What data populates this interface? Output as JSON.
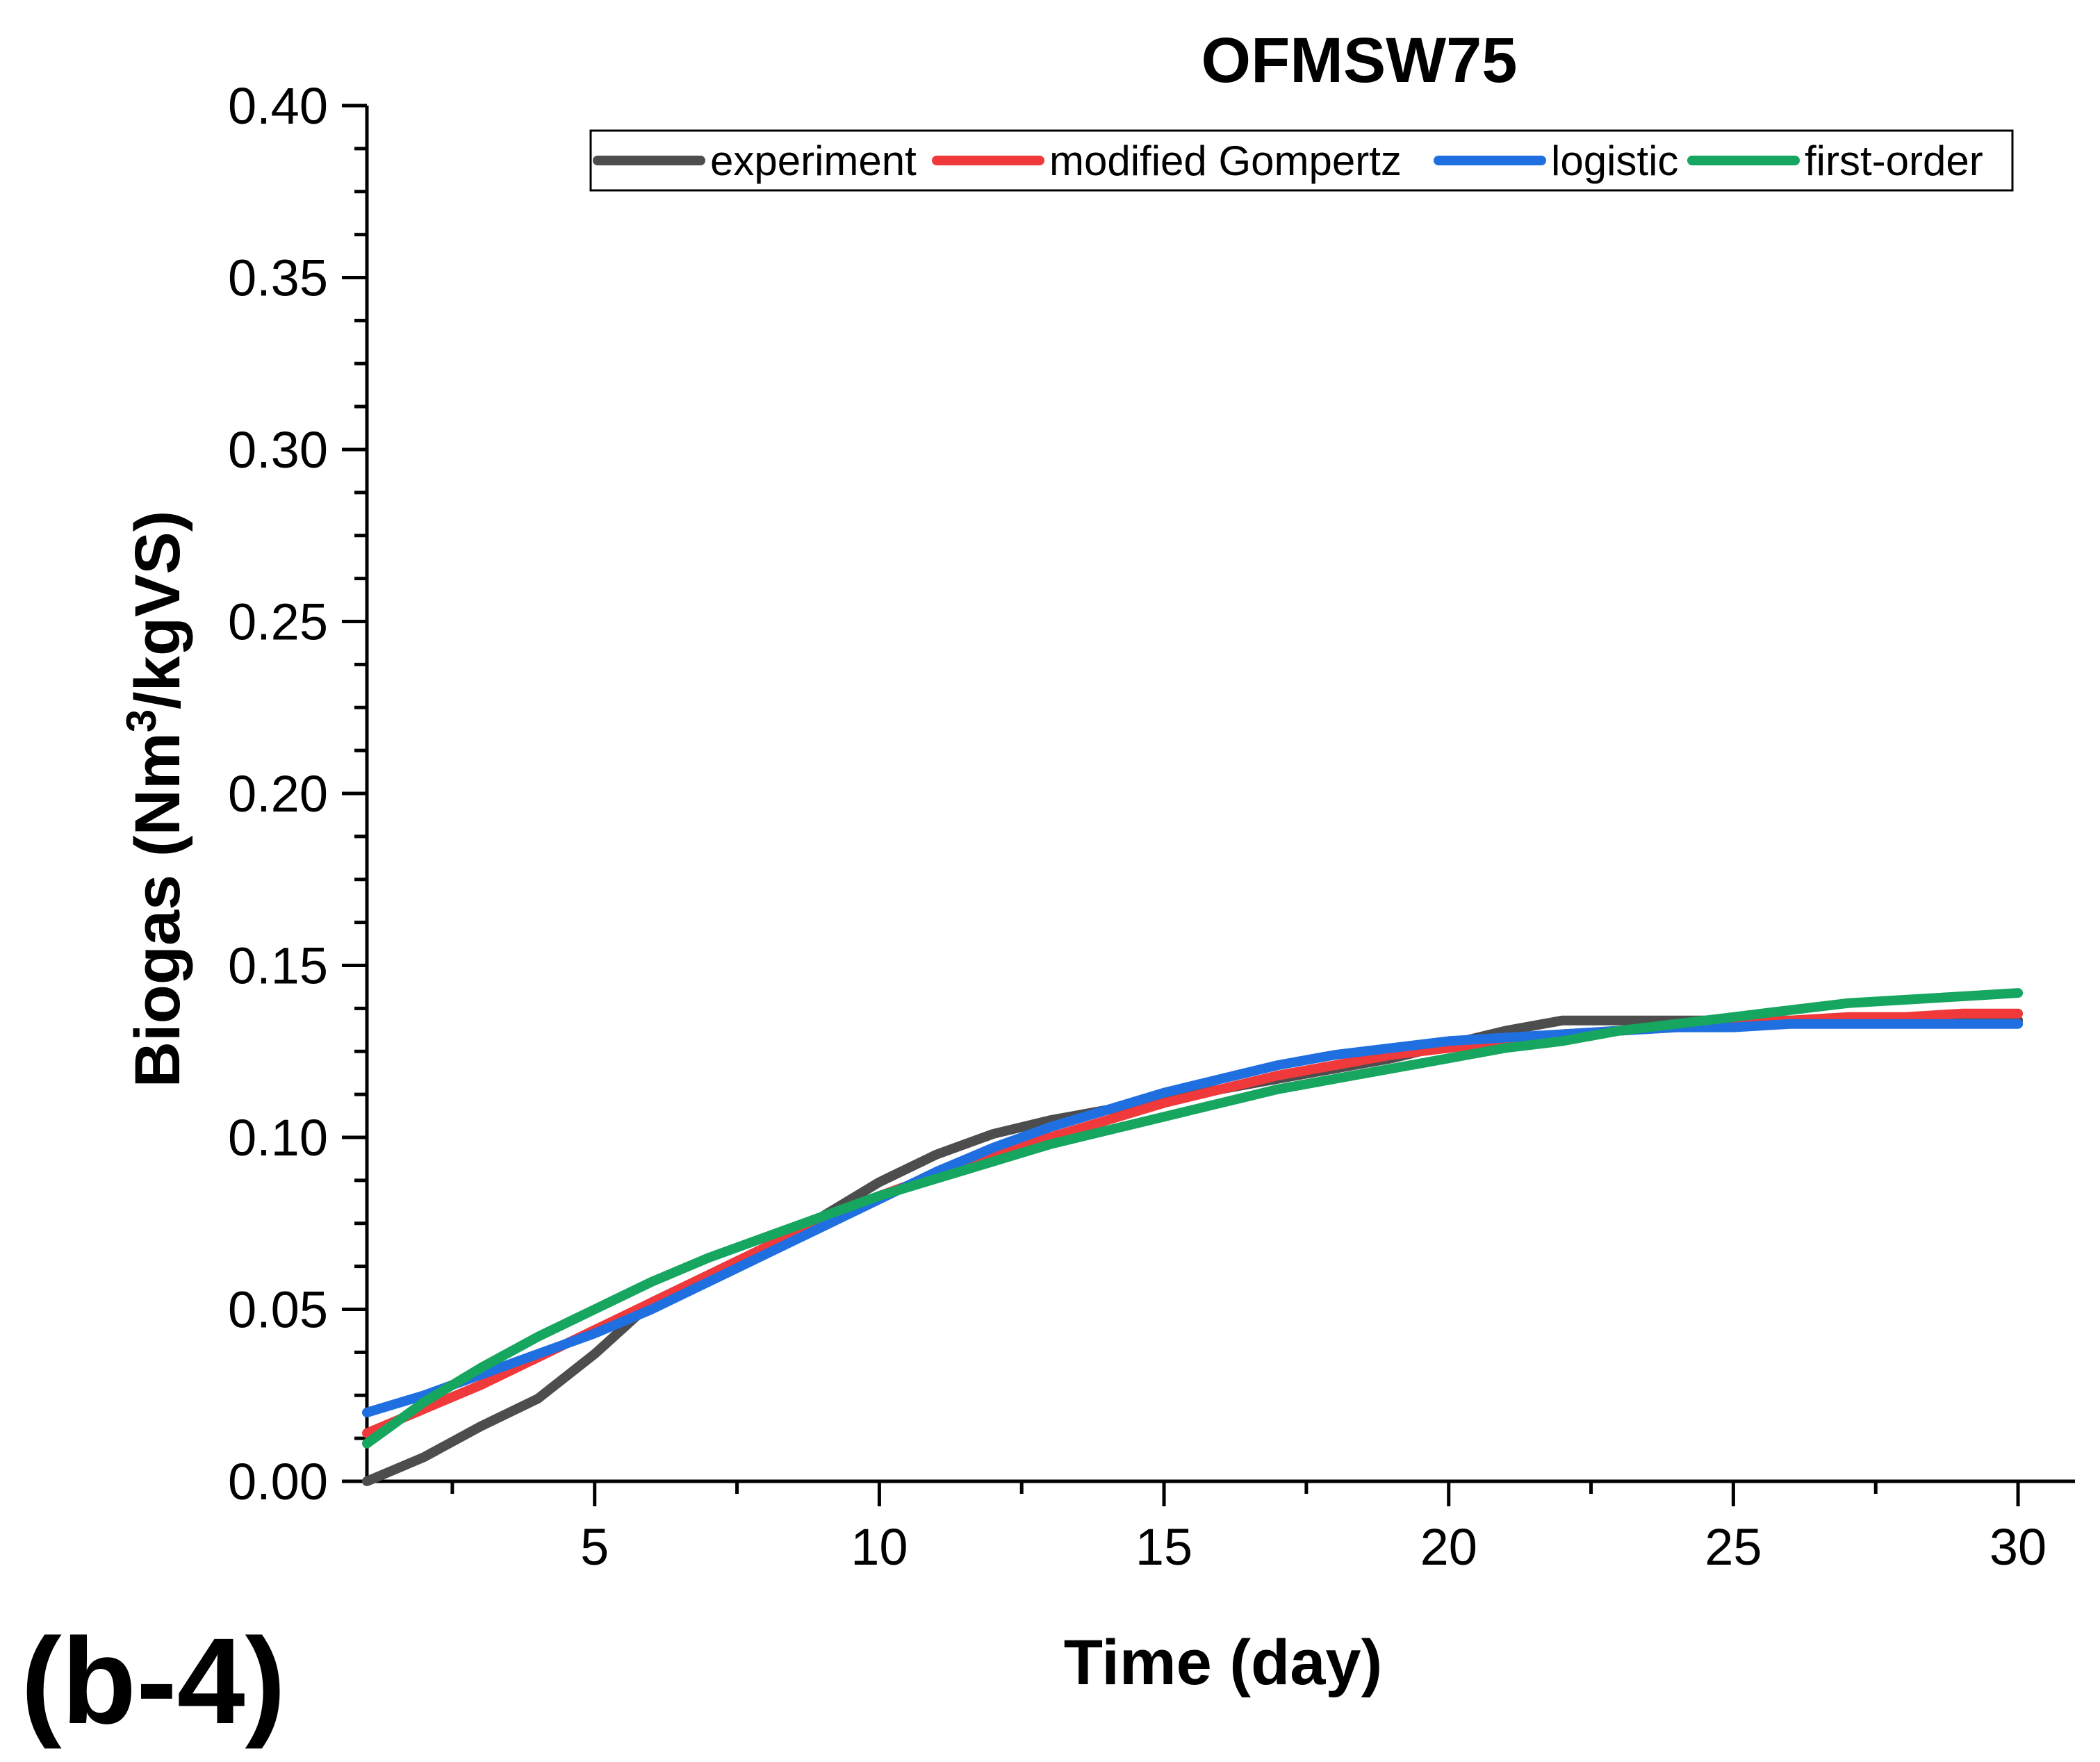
{
  "panel_label": "(b-4)",
  "chart_data": {
    "type": "line",
    "title": "OFMSW75",
    "xlabel": "Time (day)",
    "ylabel_main": "Biogas (Nm",
    "ylabel_sup": "3",
    "ylabel_tail": "/kgVS)",
    "xlim": [
      1,
      31
    ],
    "ylim": [
      0,
      0.4
    ],
    "xticks_major": [
      5,
      10,
      15,
      20,
      25,
      30
    ],
    "xtick_labels": [
      "5",
      "10",
      "15",
      "20",
      "25",
      "30"
    ],
    "yticks_major": [
      0,
      0.05,
      0.1,
      0.15,
      0.2,
      0.25,
      0.3,
      0.35,
      0.4
    ],
    "ytick_labels": [
      "0.00",
      "0.05",
      "0.10",
      "0.15",
      "0.20",
      "0.25",
      "0.30",
      "0.35",
      "0.40"
    ],
    "legend_position": "top-right",
    "series": [
      {
        "name": "experiment",
        "color": "#4d4d4d",
        "x": [
          1,
          2,
          3,
          4,
          5,
          6,
          7,
          8,
          9,
          10,
          11,
          12,
          13,
          14,
          15,
          16,
          17,
          18,
          19,
          20,
          21,
          22,
          23,
          24,
          25,
          26,
          27,
          28,
          29,
          30
        ],
        "y": [
          0.0,
          0.007,
          0.016,
          0.024,
          0.037,
          0.052,
          0.06,
          0.068,
          0.077,
          0.087,
          0.095,
          0.101,
          0.105,
          0.108,
          0.111,
          0.114,
          0.117,
          0.12,
          0.123,
          0.127,
          0.131,
          0.134,
          0.134,
          0.134,
          0.134,
          0.134,
          0.134,
          0.134,
          0.134,
          0.134
        ]
      },
      {
        "name": "modified Gompertz",
        "color": "#f0393b",
        "x": [
          1,
          2,
          3,
          4,
          5,
          6,
          7,
          8,
          9,
          10,
          11,
          12,
          13,
          14,
          15,
          16,
          17,
          18,
          19,
          20,
          21,
          22,
          23,
          24,
          25,
          26,
          27,
          28,
          29,
          30
        ],
        "y": [
          0.014,
          0.021,
          0.028,
          0.036,
          0.044,
          0.052,
          0.06,
          0.068,
          0.076,
          0.083,
          0.089,
          0.095,
          0.1,
          0.105,
          0.11,
          0.114,
          0.118,
          0.121,
          0.124,
          0.126,
          0.128,
          0.13,
          0.131,
          0.132,
          0.133,
          0.134,
          0.135,
          0.135,
          0.136,
          0.136
        ]
      },
      {
        "name": "logistic",
        "color": "#1f6fe0",
        "x": [
          1,
          2,
          3,
          4,
          5,
          6,
          7,
          8,
          9,
          10,
          11,
          12,
          13,
          14,
          15,
          16,
          17,
          18,
          19,
          20,
          21,
          22,
          23,
          24,
          25,
          26,
          27,
          28,
          29,
          30
        ],
        "y": [
          0.02,
          0.025,
          0.031,
          0.037,
          0.043,
          0.05,
          0.058,
          0.066,
          0.074,
          0.082,
          0.09,
          0.097,
          0.103,
          0.108,
          0.113,
          0.117,
          0.121,
          0.124,
          0.126,
          0.128,
          0.129,
          0.13,
          0.131,
          0.132,
          0.132,
          0.133,
          0.133,
          0.133,
          0.133,
          0.133
        ]
      },
      {
        "name": "first-order",
        "color": "#16a65f",
        "x": [
          1,
          2,
          3,
          4,
          5,
          6,
          7,
          8,
          9,
          10,
          11,
          12,
          13,
          14,
          15,
          16,
          17,
          18,
          19,
          20,
          21,
          22,
          23,
          24,
          25,
          26,
          27,
          28,
          29,
          30
        ],
        "y": [
          0.011,
          0.023,
          0.033,
          0.042,
          0.05,
          0.058,
          0.065,
          0.071,
          0.077,
          0.083,
          0.088,
          0.093,
          0.098,
          0.102,
          0.106,
          0.11,
          0.114,
          0.117,
          0.12,
          0.123,
          0.126,
          0.128,
          0.131,
          0.133,
          0.135,
          0.137,
          0.139,
          0.14,
          0.141,
          0.142
        ]
      }
    ]
  }
}
